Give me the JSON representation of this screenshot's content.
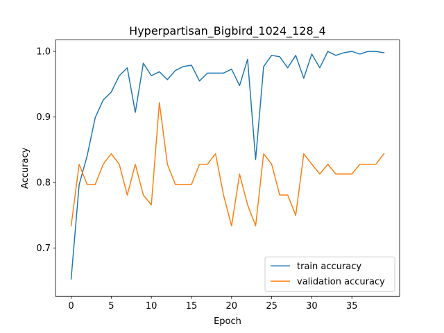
{
  "chart_data": {
    "type": "line",
    "title": "Hyperpartisan_Bigbird_1024_128_4",
    "xlabel": "Epoch",
    "ylabel": "Accuracy",
    "xlim": [
      -1.95,
      40.95
    ],
    "ylim": [
      0.6265,
      1.0175
    ],
    "xticks": [
      0,
      5,
      10,
      15,
      20,
      25,
      30,
      35
    ],
    "yticks": [
      0.7,
      0.8,
      0.9,
      1.0
    ],
    "ytick_labels": [
      "0.7",
      "0.8",
      "0.9",
      "1.0"
    ],
    "grid": false,
    "legend_position": "lower-right",
    "x": [
      0,
      1,
      2,
      3,
      4,
      5,
      6,
      7,
      8,
      9,
      10,
      11,
      12,
      13,
      14,
      15,
      16,
      17,
      18,
      19,
      20,
      21,
      22,
      23,
      24,
      25,
      26,
      27,
      28,
      29,
      30,
      31,
      32,
      33,
      34,
      35,
      36,
      37,
      38,
      39
    ],
    "series": [
      {
        "name": "train accuracy",
        "color": "#1f77b4",
        "values": [
          0.653,
          0.797,
          0.841,
          0.899,
          0.926,
          0.938,
          0.963,
          0.975,
          0.907,
          0.982,
          0.963,
          0.969,
          0.957,
          0.971,
          0.977,
          0.979,
          0.955,
          0.967,
          0.967,
          0.967,
          0.973,
          0.948,
          0.988,
          0.835,
          0.977,
          0.994,
          0.992,
          0.975,
          0.994,
          0.959,
          0.996,
          0.975,
          1.0,
          0.994,
          0.998,
          1.0,
          0.996,
          1.0,
          1.0,
          0.998
        ]
      },
      {
        "name": "validation accuracy",
        "color": "#ff7f0e",
        "values": [
          0.734,
          0.828,
          0.797,
          0.797,
          0.828,
          0.844,
          0.828,
          0.781,
          0.828,
          0.781,
          0.766,
          0.922,
          0.828,
          0.797,
          0.797,
          0.797,
          0.828,
          0.828,
          0.844,
          0.781,
          0.734,
          0.813,
          0.766,
          0.734,
          0.844,
          0.828,
          0.781,
          0.781,
          0.75,
          0.844,
          0.828,
          0.813,
          0.828,
          0.813,
          0.813,
          0.813,
          0.828,
          0.828,
          0.828,
          0.844
        ]
      }
    ]
  }
}
